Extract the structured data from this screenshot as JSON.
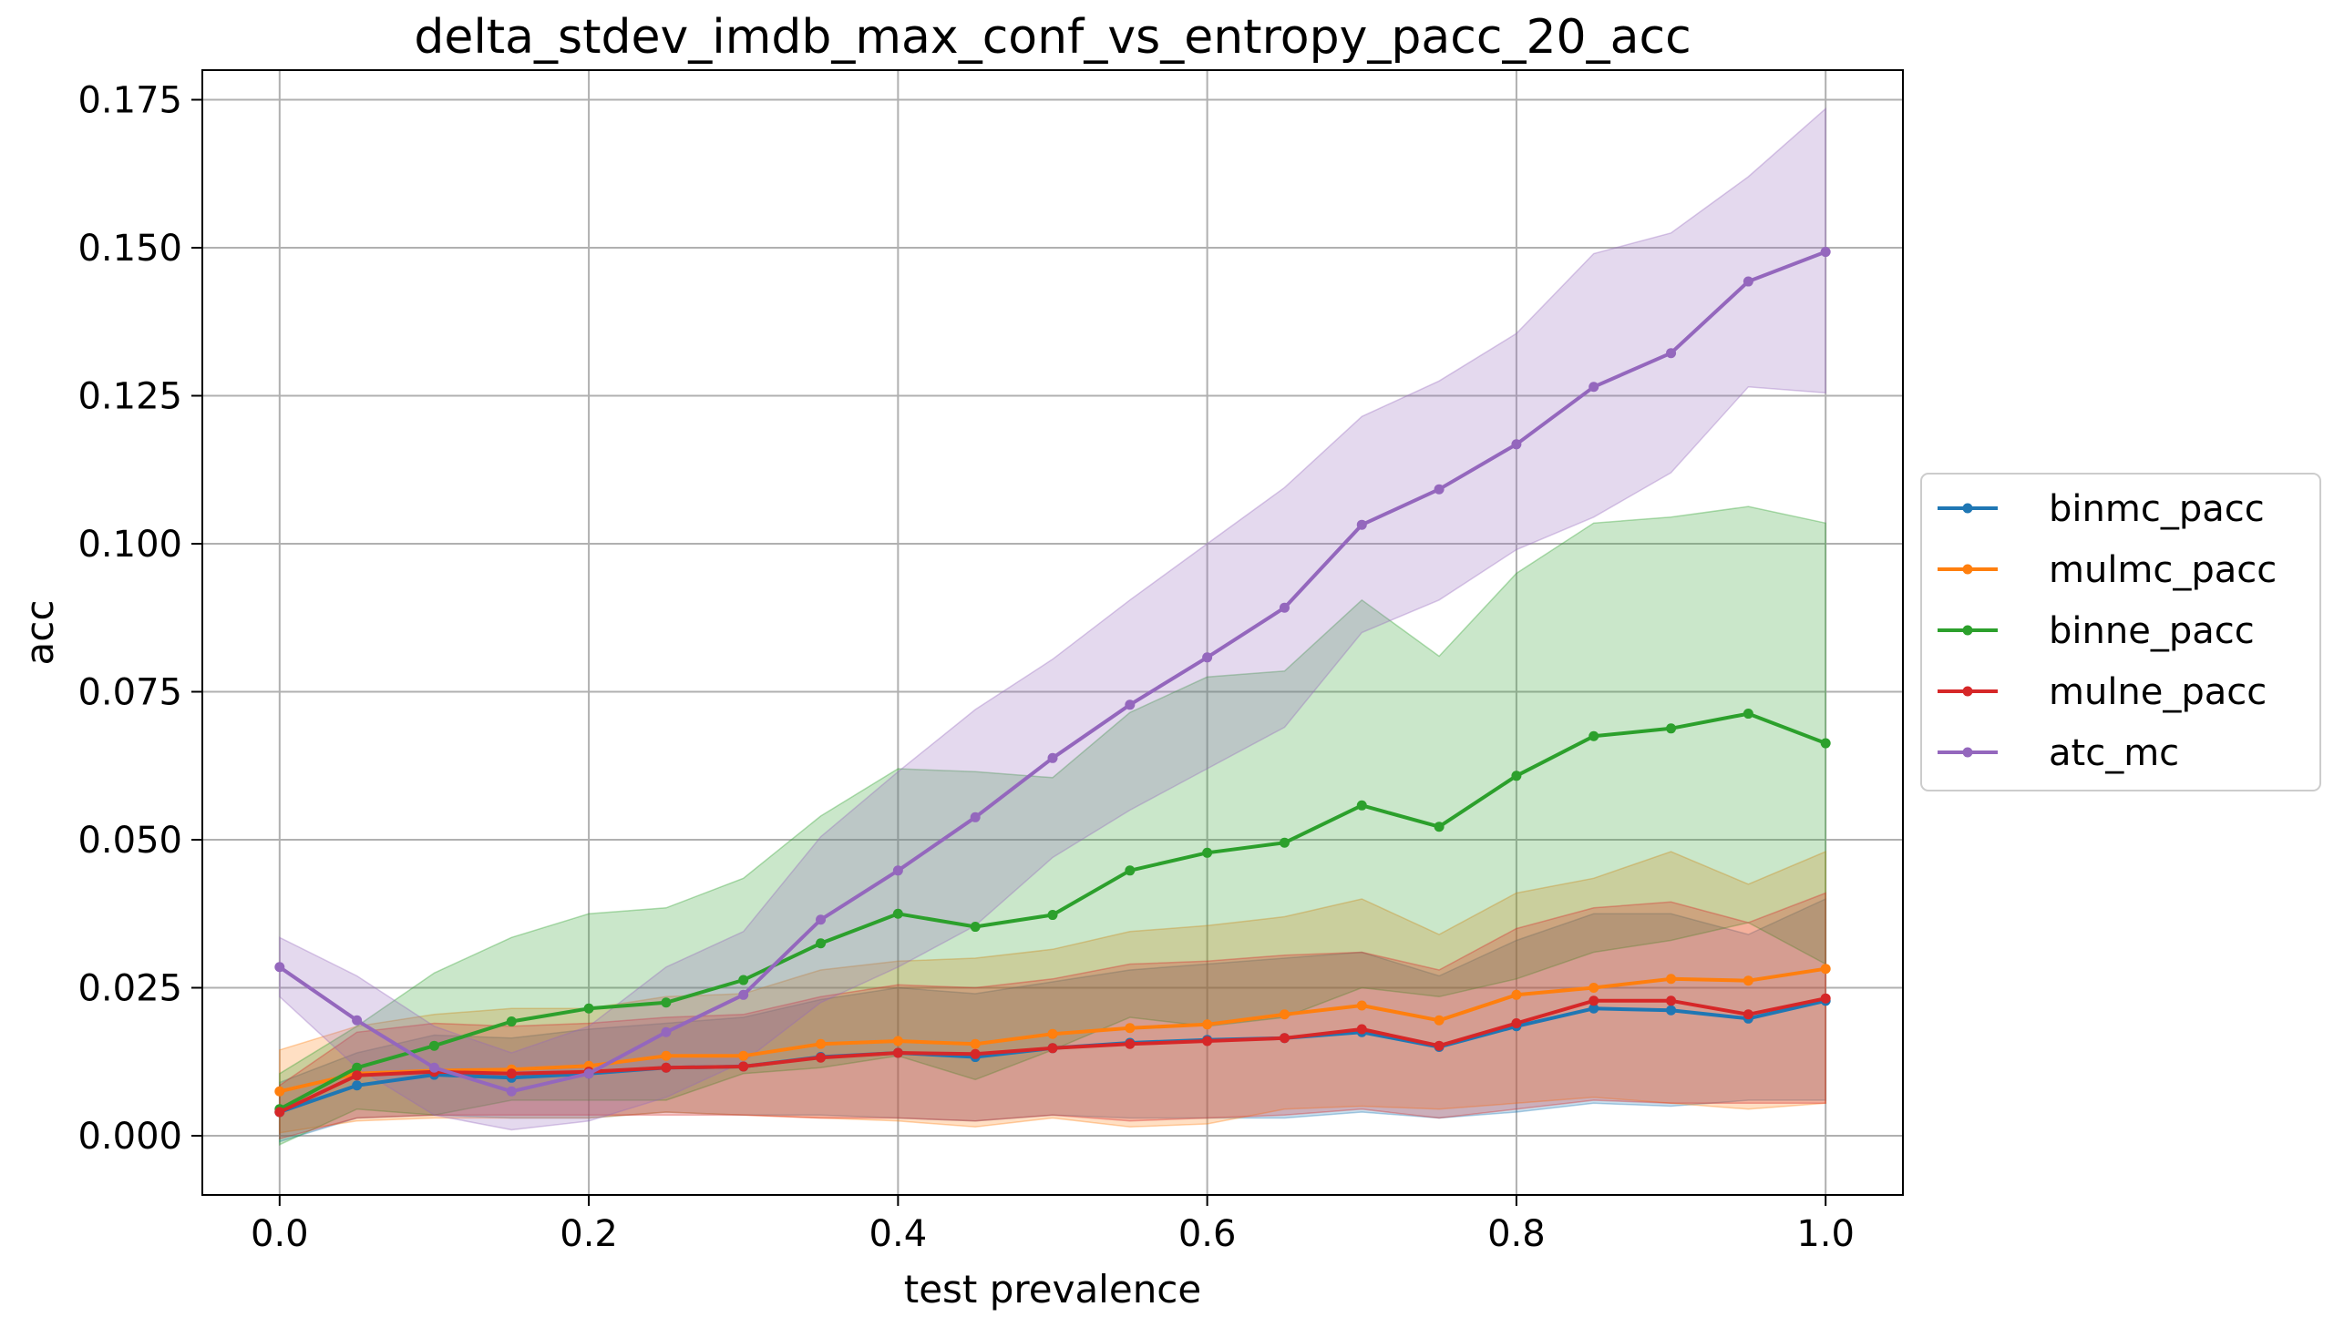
{
  "chart_data": {
    "type": "line",
    "title": "delta_stdev_imdb_max_conf_vs_entropy_pacc_20_acc",
    "xlabel": "test prevalence",
    "ylabel": "acc",
    "xlim": [
      -0.05,
      1.05
    ],
    "ylim": [
      -0.01,
      0.18
    ],
    "xticks": [
      0.0,
      0.2,
      0.4,
      0.6,
      0.8,
      1.0
    ],
    "xtick_labels": [
      "0.0",
      "0.2",
      "0.4",
      "0.6",
      "0.8",
      "1.0"
    ],
    "yticks": [
      0.0,
      0.025,
      0.05,
      0.075,
      0.1,
      0.125,
      0.15,
      0.175
    ],
    "ytick_labels": [
      "0.000",
      "0.025",
      "0.050",
      "0.075",
      "0.100",
      "0.125",
      "0.150",
      "0.175"
    ],
    "grid": true,
    "legend_position": "right, outside",
    "x": [
      0.0,
      0.05,
      0.1,
      0.15,
      0.2,
      0.25,
      0.3,
      0.35,
      0.4,
      0.45,
      0.5,
      0.55,
      0.6,
      0.65,
      0.7,
      0.75,
      0.8,
      0.85,
      0.9,
      0.95,
      1.0
    ],
    "series": [
      {
        "name": "binmc_pacc",
        "color": "#1f77b4",
        "values": [
          0.004,
          0.0085,
          0.0103,
          0.0098,
          0.0105,
          0.0115,
          0.0117,
          0.0133,
          0.014,
          0.0133,
          0.0148,
          0.0157,
          0.0162,
          0.0165,
          0.0175,
          0.015,
          0.0185,
          0.0215,
          0.0212,
          0.0198,
          0.0228
        ],
        "lower": [
          -0.001,
          0.003,
          0.0035,
          0.003,
          0.003,
          0.004,
          0.0035,
          0.0035,
          0.003,
          0.0025,
          0.0035,
          0.003,
          0.003,
          0.003,
          0.004,
          0.003,
          0.004,
          0.0055,
          0.005,
          0.006,
          0.006
        ],
        "upper": [
          0.009,
          0.014,
          0.017,
          0.0165,
          0.018,
          0.019,
          0.02,
          0.023,
          0.025,
          0.024,
          0.026,
          0.028,
          0.029,
          0.03,
          0.031,
          0.027,
          0.033,
          0.0375,
          0.0375,
          0.034,
          0.04
        ]
      },
      {
        "name": "mulmc_pacc",
        "color": "#ff7f0e",
        "values": [
          0.0075,
          0.0105,
          0.011,
          0.0112,
          0.0118,
          0.0135,
          0.0135,
          0.0155,
          0.016,
          0.0155,
          0.0172,
          0.0182,
          0.0188,
          0.0205,
          0.022,
          0.0195,
          0.0238,
          0.025,
          0.0265,
          0.0262,
          0.0282
        ],
        "lower": [
          0.0005,
          0.0025,
          0.003,
          0.003,
          0.003,
          0.004,
          0.0035,
          0.003,
          0.0025,
          0.0015,
          0.003,
          0.0015,
          0.002,
          0.0045,
          0.005,
          0.0045,
          0.0055,
          0.0065,
          0.0055,
          0.0045,
          0.0055
        ],
        "upper": [
          0.0145,
          0.0185,
          0.0205,
          0.0215,
          0.0215,
          0.0235,
          0.024,
          0.028,
          0.0295,
          0.03,
          0.0315,
          0.0345,
          0.0355,
          0.037,
          0.04,
          0.034,
          0.041,
          0.0435,
          0.048,
          0.0425,
          0.048
        ]
      },
      {
        "name": "binne_pacc",
        "color": "#2ca02c",
        "values": [
          0.0045,
          0.0115,
          0.0152,
          0.0193,
          0.0215,
          0.0225,
          0.0263,
          0.0325,
          0.0375,
          0.0353,
          0.0373,
          0.0448,
          0.0478,
          0.0495,
          0.0558,
          0.0522,
          0.0608,
          0.0675,
          0.0688,
          0.0713,
          0.0663
        ],
        "lower": [
          -0.0015,
          0.0045,
          0.0035,
          0.006,
          0.006,
          0.006,
          0.0105,
          0.0115,
          0.0135,
          0.0095,
          0.0145,
          0.02,
          0.0185,
          0.02,
          0.025,
          0.0235,
          0.0265,
          0.031,
          0.033,
          0.036,
          0.029
        ],
        "upper": [
          0.0105,
          0.0185,
          0.0275,
          0.0335,
          0.0375,
          0.0385,
          0.0435,
          0.054,
          0.062,
          0.0615,
          0.0605,
          0.0715,
          0.0775,
          0.0785,
          0.0905,
          0.081,
          0.095,
          0.1035,
          0.1045,
          0.1063,
          0.1035
        ]
      },
      {
        "name": "mulne_pacc",
        "color": "#d62728",
        "values": [
          0.004,
          0.0102,
          0.0108,
          0.0105,
          0.0108,
          0.0115,
          0.0117,
          0.0132,
          0.014,
          0.0138,
          0.0148,
          0.0155,
          0.016,
          0.0165,
          0.018,
          0.0152,
          0.019,
          0.0228,
          0.0228,
          0.0205,
          0.0232
        ],
        "lower": [
          -0.0005,
          0.003,
          0.0035,
          0.0035,
          0.0035,
          0.0035,
          0.0035,
          0.003,
          0.003,
          0.0025,
          0.0035,
          0.0025,
          0.003,
          0.0035,
          0.0045,
          0.003,
          0.0045,
          0.006,
          0.0055,
          0.0055,
          0.0055
        ],
        "upper": [
          0.0085,
          0.0175,
          0.019,
          0.0185,
          0.019,
          0.02,
          0.0205,
          0.0235,
          0.0255,
          0.025,
          0.0265,
          0.029,
          0.0295,
          0.0305,
          0.031,
          0.028,
          0.035,
          0.0385,
          0.0395,
          0.036,
          0.041
        ]
      },
      {
        "name": "atc_mc",
        "color": "#9467bd",
        "values": [
          0.0285,
          0.0195,
          0.0115,
          0.0075,
          0.0105,
          0.0175,
          0.0238,
          0.0365,
          0.0448,
          0.0538,
          0.0638,
          0.0728,
          0.0808,
          0.0892,
          0.1032,
          0.1092,
          0.1168,
          0.1265,
          0.1322,
          0.1443,
          0.1493
        ],
        "lower": [
          0.0235,
          0.0115,
          0.0035,
          0.001,
          0.0025,
          0.0065,
          0.0125,
          0.0225,
          0.0285,
          0.0355,
          0.047,
          0.055,
          0.062,
          0.069,
          0.085,
          0.0905,
          0.099,
          0.1045,
          0.112,
          0.1265,
          0.1255
        ],
        "upper": [
          0.0335,
          0.027,
          0.0185,
          0.014,
          0.0185,
          0.0285,
          0.0345,
          0.0505,
          0.0615,
          0.072,
          0.0805,
          0.0905,
          0.1,
          0.1095,
          0.1215,
          0.1275,
          0.1355,
          0.149,
          0.1525,
          0.162,
          0.1735
        ]
      }
    ]
  }
}
